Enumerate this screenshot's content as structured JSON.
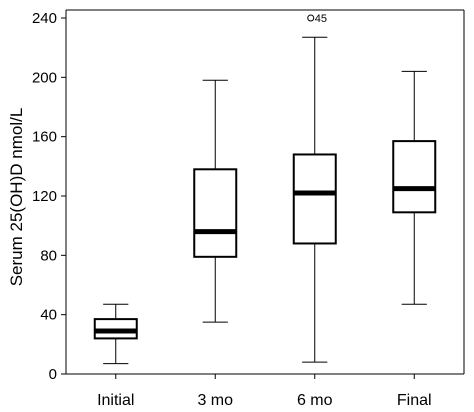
{
  "chart_data": {
    "type": "boxplot",
    "title": "",
    "ylabel": "Serum 25(OH)D  nmol/L",
    "xlabel": "",
    "ylim": [
      0,
      240
    ],
    "yticks": [
      0,
      40,
      80,
      120,
      160,
      200,
      240
    ],
    "grid": false,
    "categories": [
      "Initial",
      "3 mo",
      "6 mo",
      "Final"
    ],
    "boxes": [
      {
        "category": "Initial",
        "min": 7,
        "q1": 24,
        "median": 29,
        "q3": 37,
        "max": 47
      },
      {
        "category": "3 mo",
        "min": 35,
        "q1": 79,
        "median": 96,
        "q3": 138,
        "max": 198
      },
      {
        "category": "6 mo",
        "min": 8,
        "q1": 88,
        "median": 122,
        "q3": 148,
        "max": 227
      },
      {
        "category": "Final",
        "min": 47,
        "q1": 109,
        "median": 125,
        "q3": 157,
        "max": 204
      }
    ],
    "outliers": [
      {
        "category": "6 mo",
        "value": 240,
        "label": "45"
      }
    ]
  }
}
